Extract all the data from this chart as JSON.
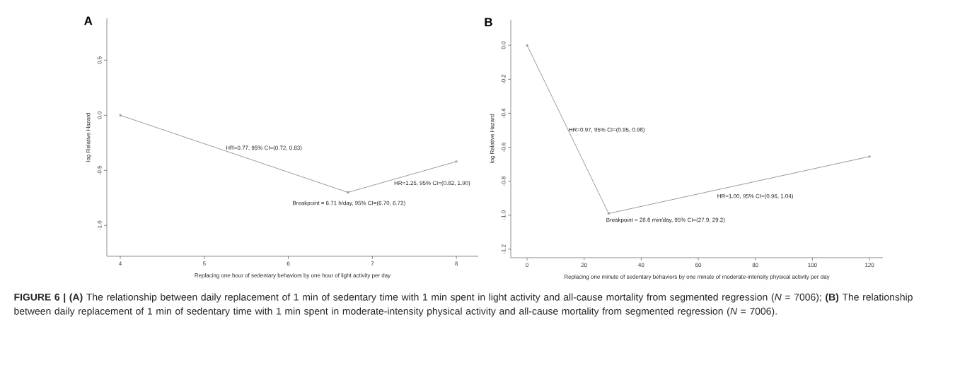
{
  "chart_data": [
    {
      "type": "line",
      "title": "A",
      "xlabel": "Replacing one hour of sedentary behaviors by one hour of light activity  per day",
      "ylabel": "log Relative Hazard",
      "x": [
        4,
        6.71,
        8
      ],
      "values": [
        0,
        -0.7,
        -0.42
      ],
      "color": "#555555",
      "marker": "circle",
      "line_style": "solid",
      "xlim": [
        3.84,
        8.26
      ],
      "ylim": [
        -1.28,
        0.88
      ],
      "xticks": [
        4,
        5,
        6,
        7,
        8
      ],
      "yticks": [
        {
          "value": -1.0,
          "label": "-1.0"
        },
        {
          "value": -0.5,
          "label": "-0.5"
        },
        {
          "value": 0.0,
          "label": "0.0"
        },
        {
          "value": 0.5,
          "label": "0.5"
        }
      ],
      "annotations": [
        "HR=0.77, 95% CI=(0.72, 0.83)",
        "HR=1.25, 95% CI=(0.82, 1.90)",
        "Breakpoint = 6.71 h/day, 95% CI=(6.70, 6.72)",
        "**FIGURE 6 | (A)** The relationship between daily replacement of 1 min of sedentary time with 1 min spent in light activity and all-cause mortality from segmented regression (*N* = 7006); **(B)** The relationship between daily replacement of 1 min of sedentary time with 1 min spent in moderate-intensity physical activity and all-cause mortality from segmented regression (*N* = 7006)."
      ]
    },
    {
      "type": "line",
      "title": "B",
      "xlabel": "Replacing one minute of sedentary behaviors by one minute of moderate-intensity physical activity per day",
      "ylabel": "log Relative Hazard",
      "x": [
        0,
        28.6,
        120
      ],
      "values": [
        0,
        -0.99,
        -0.655
      ],
      "color": "#555555",
      "marker": "circle",
      "line_style": "solid",
      "xlim": [
        -5.7,
        124.7
      ],
      "ylim": [
        -1.25,
        0.15
      ],
      "xticks": [
        0,
        20,
        40,
        60,
        80,
        100,
        120
      ],
      "yticks": [
        {
          "value": -1.2,
          "label": "-1.2"
        },
        {
          "value": -1.0,
          "label": "-1.0"
        },
        {
          "value": -0.8,
          "label": "-0.8"
        },
        {
          "value": -0.6,
          "label": "-0.6"
        },
        {
          "value": -0.4,
          "label": "-0.4"
        },
        {
          "value": -0.2,
          "label": "-0.2"
        },
        {
          "value": 0.0,
          "label": "0.0"
        }
      ],
      "annotations": [
        "HR=0.97, 95% CI=(0.95, 0.98)",
        "HR=1.00, 95% CI=(0.96, 1.04)",
        "Breakpoint = 28.6 min/day, 95% CI=(27.9, 29.2)"
      ]
    }
  ]
}
